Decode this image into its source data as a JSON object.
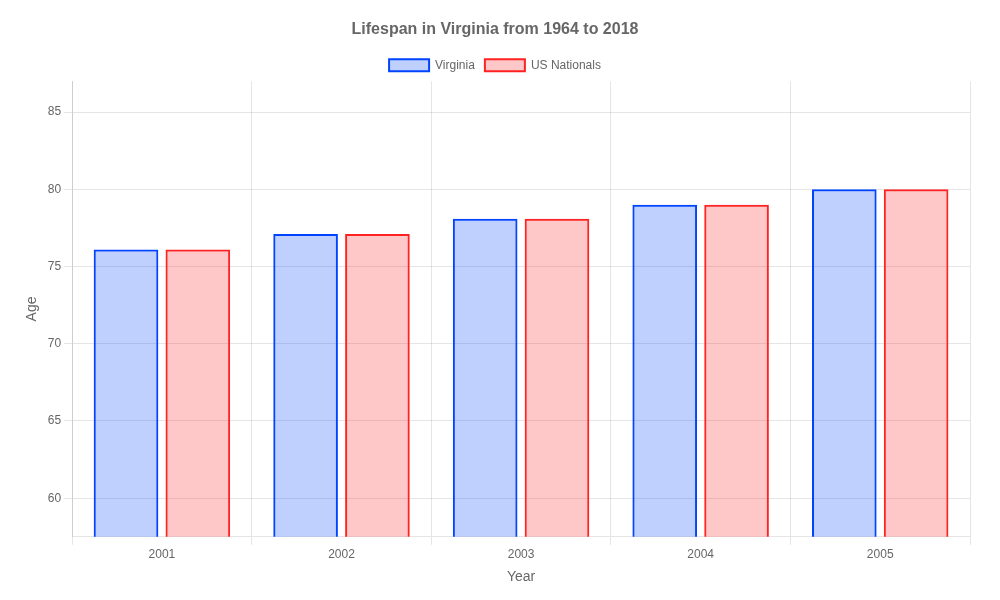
{
  "chart_data": {
    "type": "bar",
    "title": "Lifespan in Virginia from 1964 to 2018",
    "x_label": "Year",
    "y_label": "Age",
    "categories": [
      "2001",
      "2002",
      "2003",
      "2004",
      "2005"
    ],
    "series": [
      {
        "name": "Virginia",
        "color": "#0044ff",
        "values": [
          76.1,
          77.1,
          78.1,
          79.0,
          80.0
        ]
      },
      {
        "name": "US Nationals",
        "color": "#ff2222",
        "values": [
          76.1,
          77.1,
          78.1,
          79.0,
          80.0
        ]
      }
    ],
    "ylim": [
      57.5,
      87
    ],
    "yticks": [
      60,
      65,
      70,
      75,
      80,
      85
    ],
    "grid": true,
    "legend": "top"
  }
}
